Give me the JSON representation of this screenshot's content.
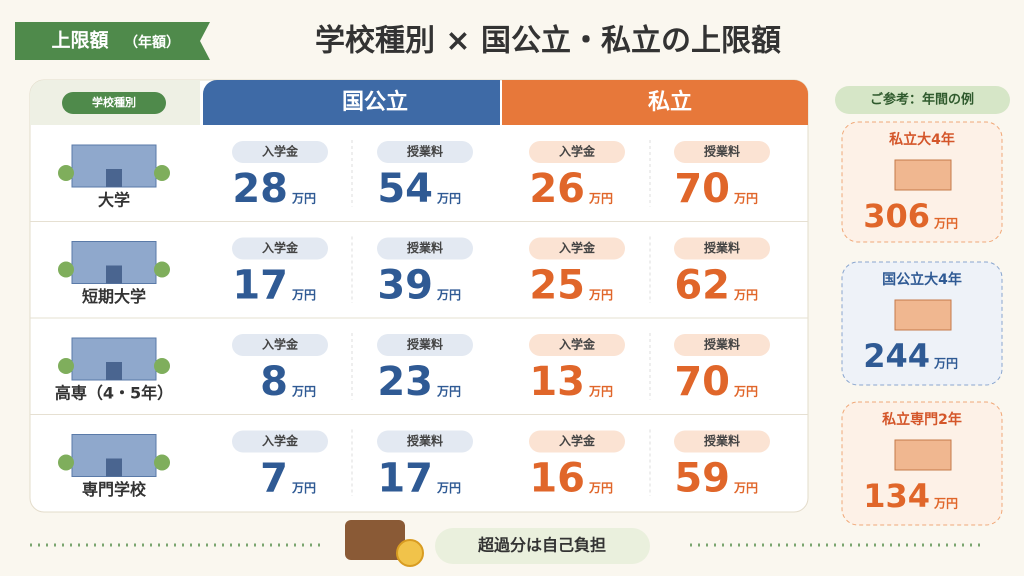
{
  "badge": {
    "label": "上限額",
    "note": "（年額）"
  },
  "title": "学校種別 × 国公立・私立の上限額",
  "table": {
    "headers": [
      "学校種別",
      "国公立",
      "私立"
    ],
    "fee_labels": [
      "入学金",
      "授業料"
    ],
    "unit": "万円",
    "rows": [
      {
        "name": "大学",
        "public": [
          28,
          54
        ],
        "private": [
          26,
          70
        ]
      },
      {
        "name": "短期大学",
        "public": [
          17,
          39
        ],
        "private": [
          25,
          62
        ]
      },
      {
        "name": "高専（4・5年）",
        "public": [
          8,
          23
        ],
        "private": [
          13,
          70
        ]
      },
      {
        "name": "専門学校",
        "public": [
          7,
          17
        ],
        "private": [
          16,
          59
        ]
      }
    ]
  },
  "reference": {
    "heading": "ご参考：年間の例",
    "cards": [
      {
        "label": "私立大4年",
        "value": 306
      },
      {
        "label": "国公立大4年",
        "value": 244
      },
      {
        "label": "私立専門2年",
        "value": 134
      }
    ]
  },
  "footer": "超過分は自己負担"
}
